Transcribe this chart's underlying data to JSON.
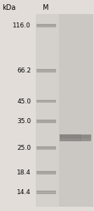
{
  "background_color": "#e2ddd9",
  "gel_bg_color": "#d4d0cc",
  "marker_band_color": "#a09c98",
  "sample_band_color": "#888480",
  "mw_markers": [
    116.0,
    66.2,
    45.0,
    35.0,
    25.0,
    18.4,
    14.4
  ],
  "sample_band_mw": 28.5,
  "label_fontsize": 6.5,
  "header_fontsize": 7.0,
  "fig_width": 1.34,
  "fig_height": 3.0,
  "dpi": 100
}
